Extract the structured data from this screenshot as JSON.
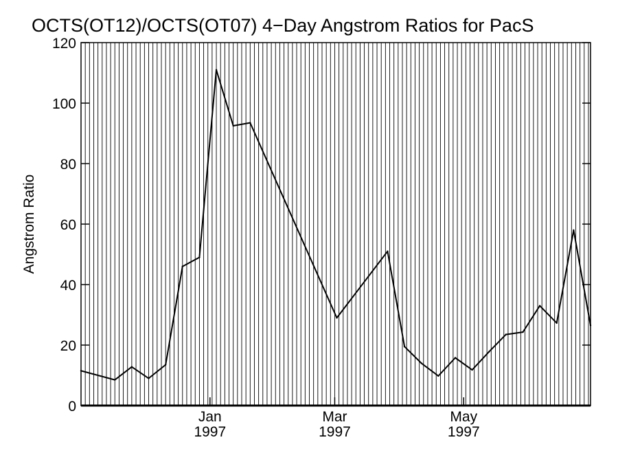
{
  "chart_data": {
    "type": "line",
    "title": "OCTS(OT12)/OCTS(OT07) 4−Day Angstrom Ratios for PacS",
    "xlabel": "",
    "ylabel": "Angstrom Ratio",
    "xlim": [
      "1996-11-01",
      "1997-06-30"
    ],
    "ylim": [
      0,
      120
    ],
    "ytick_values": [
      0,
      20,
      40,
      60,
      80,
      100,
      120
    ],
    "ytick_labels": [
      "0",
      "20",
      "40",
      "60",
      "80",
      "100",
      "120"
    ],
    "xticks": [
      {
        "date": "1997-01-01",
        "month": "Jan",
        "year": "1997"
      },
      {
        "date": "1997-03-01",
        "month": "Mar",
        "year": "1997"
      },
      {
        "date": "1997-05-01",
        "month": "May",
        "year": "1997"
      }
    ],
    "vertical_gridlines": "every 2 days",
    "reference_line_y": 0,
    "series": [
      {
        "color": "#000000",
        "x": [
          "1996-11-01",
          "1996-11-17",
          "1996-11-25",
          "1996-12-03",
          "1996-12-11",
          "1996-12-19",
          "1996-12-27",
          "1997-01-04",
          "1997-01-12",
          "1997-01-20",
          "1997-03-02",
          "1997-03-26",
          "1997-04-03",
          "1997-04-11",
          "1997-04-19",
          "1997-04-27",
          "1997-05-05",
          "1997-05-13",
          "1997-05-21",
          "1997-05-29",
          "1997-06-06",
          "1997-06-14",
          "1997-06-22",
          "1997-06-30"
        ],
        "y": [
          11.5,
          8.5,
          12.8,
          9,
          13.5,
          46,
          49,
          111,
          92.5,
          93.5,
          29,
          51,
          19.5,
          14,
          9.8,
          15.8,
          11.8,
          17.8,
          23.5,
          24.3,
          33,
          27.3,
          58,
          26.5
        ]
      }
    ]
  }
}
